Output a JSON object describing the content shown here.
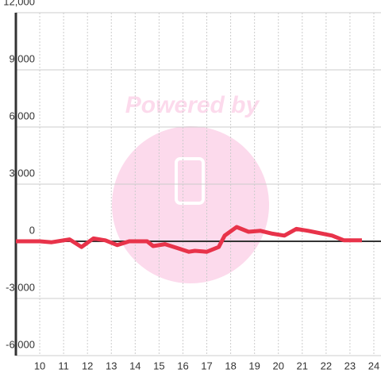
{
  "chart_data": {
    "type": "line",
    "watermark": "Powered by",
    "x": [
      9,
      10,
      10.5,
      11.25,
      11.75,
      12.25,
      12.75,
      13.25,
      13.75,
      14.5,
      14.75,
      15.25,
      15.75,
      16.25,
      16.5,
      17,
      17.5,
      17.75,
      18.25,
      18.75,
      19.25,
      19.75,
      20.25,
      20.75,
      21.25,
      22.25,
      22.75,
      23.5
    ],
    "series": [
      {
        "color": "#e8334a",
        "values": [
          0,
          0,
          -50,
          100,
          -300,
          150,
          50,
          -200,
          0,
          0,
          -250,
          -150,
          -350,
          -550,
          -500,
          -550,
          -300,
          300,
          750,
          500,
          550,
          400,
          300,
          650,
          550,
          300,
          50,
          50
        ]
      }
    ],
    "xlim": [
      9,
      24.3
    ],
    "xticks": [
      10,
      11,
      12,
      13,
      14,
      15,
      16,
      17,
      18,
      19,
      20,
      21,
      22,
      23,
      24
    ],
    "ylim": [
      -6000,
      12000
    ],
    "yticks": [
      {
        "value": -6000,
        "label": "-6,000"
      },
      {
        "value": -3000,
        "label": "-3,000"
      },
      0,
      {
        "value": 3000,
        "label": "3,000"
      },
      {
        "value": 6000,
        "label": "6,000"
      },
      {
        "value": 9000,
        "label": "9,000"
      },
      {
        "value": 12000,
        "label": "12,000"
      }
    ],
    "grid": true
  }
}
